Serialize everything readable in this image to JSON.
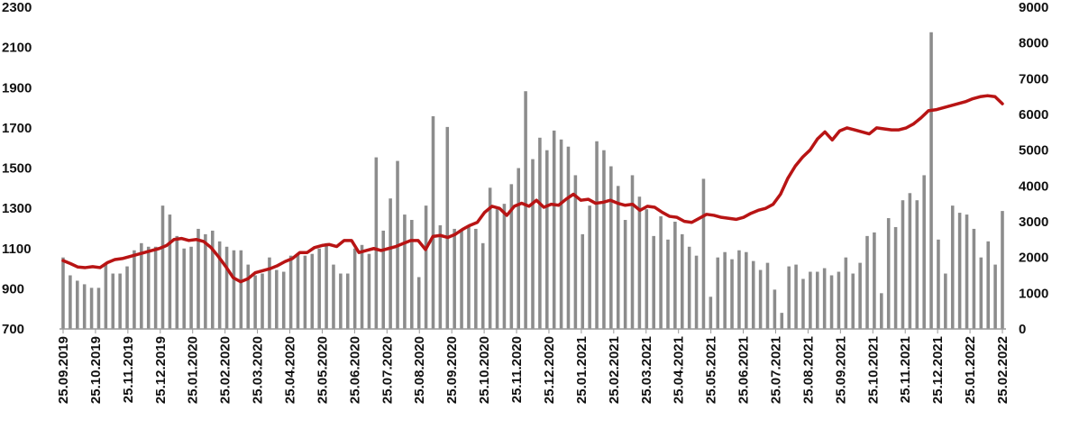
{
  "chart_data": {
    "type": "bar",
    "title": "",
    "xlabel": "",
    "ylabel": "",
    "left_axis": {
      "ylim": [
        700,
        2300
      ],
      "ticks": [
        700,
        900,
        1100,
        1300,
        1500,
        1700,
        1900,
        2100,
        2300
      ]
    },
    "right_axis": {
      "ylim": [
        0,
        9000
      ],
      "ticks": [
        0,
        1000,
        2000,
        3000,
        4000,
        5000,
        6000,
        7000,
        8000,
        9000
      ]
    },
    "x_tick_labels": [
      "25.09.2019",
      "25.10.2019",
      "25.11.2019",
      "25.12.2019",
      "25.01.2020",
      "25.02.2020",
      "25.03.2020",
      "25.04.2020",
      "25.05.2020",
      "25.06.2020",
      "25.07.2020",
      "25.08.2020",
      "25.09.2020",
      "25.10.2020",
      "25.11.2020",
      "25.12.2020",
      "25.01.2021",
      "25.02.2021",
      "25.03.2021",
      "25.04.2021",
      "25.05.2021",
      "25.06.2021",
      "25.07.2021",
      "25.08.2021",
      "25.09.2021",
      "25.10.2021",
      "25.11.2021",
      "25.12.2021",
      "25.01.2022",
      "25.02.2022"
    ],
    "grid": false,
    "legend": "none",
    "colors": {
      "bars": "#8c8c8c",
      "line": "#b81414",
      "axis": "#999999"
    },
    "series": [
      {
        "type": "bar",
        "axis": "right",
        "values": [
          2000,
          1500,
          1350,
          1250,
          1150,
          1150,
          1800,
          1550,
          1550,
          1750,
          2200,
          2400,
          2300,
          2300,
          3450,
          3200,
          2600,
          2250,
          2300,
          2800,
          2650,
          2750,
          2450,
          2300,
          2200,
          2200,
          1800,
          1500,
          1550,
          2000,
          1650,
          1600,
          2050,
          2100,
          2050,
          2100,
          2250,
          2400,
          1800,
          1550,
          1550,
          2250,
          2350,
          2100,
          4800,
          2750,
          3650,
          4700,
          3200,
          3050,
          1450,
          3450,
          5950,
          2900,
          5650,
          2800,
          2750,
          2900,
          2800,
          2400,
          3950,
          3350,
          3500,
          4050,
          4500,
          6650,
          4750,
          5350,
          5000,
          5550,
          5300,
          5100,
          4300,
          2650,
          3450,
          5250,
          5000,
          4550,
          4000,
          3050,
          4300,
          3700,
          3350,
          2600,
          3150,
          2500,
          3000,
          2650,
          2300,
          2050,
          4200,
          900,
          2000,
          2150,
          1950,
          2200,
          2150,
          1900,
          1650,
          1850,
          1100,
          450,
          1750,
          1800,
          1400,
          1600,
          1600,
          1700,
          1500,
          1600,
          2000,
          1550,
          1850,
          2600,
          2700,
          1000,
          3100,
          2850,
          3600,
          3800,
          3600,
          4300,
          8300,
          2500,
          1550,
          3450,
          3250,
          3200,
          2800,
          2000,
          2450,
          1800,
          3300
        ]
      },
      {
        "type": "line",
        "axis": "left",
        "values": [
          1040,
          1025,
          1008,
          1005,
          1010,
          1005,
          1030,
          1045,
          1050,
          1060,
          1070,
          1080,
          1090,
          1100,
          1115,
          1145,
          1150,
          1140,
          1145,
          1135,
          1105,
          1060,
          1010,
          955,
          935,
          950,
          980,
          990,
          1000,
          1015,
          1035,
          1050,
          1080,
          1080,
          1105,
          1115,
          1120,
          1110,
          1140,
          1140,
          1080,
          1090,
          1100,
          1090,
          1100,
          1110,
          1125,
          1140,
          1140,
          1095,
          1160,
          1165,
          1155,
          1170,
          1195,
          1215,
          1230,
          1280,
          1310,
          1300,
          1265,
          1310,
          1325,
          1310,
          1340,
          1305,
          1320,
          1315,
          1345,
          1370,
          1340,
          1345,
          1325,
          1330,
          1340,
          1325,
          1315,
          1320,
          1290,
          1310,
          1305,
          1280,
          1260,
          1255,
          1235,
          1230,
          1250,
          1270,
          1265,
          1255,
          1250,
          1245,
          1255,
          1275,
          1290,
          1300,
          1320,
          1370,
          1450,
          1510,
          1555,
          1590,
          1645,
          1680,
          1640,
          1685,
          1700,
          1690,
          1680,
          1670,
          1700,
          1695,
          1690,
          1690,
          1700,
          1720,
          1750,
          1785,
          1790,
          1800,
          1810,
          1820,
          1830,
          1845,
          1855,
          1860,
          1855,
          1820
        ]
      }
    ]
  }
}
